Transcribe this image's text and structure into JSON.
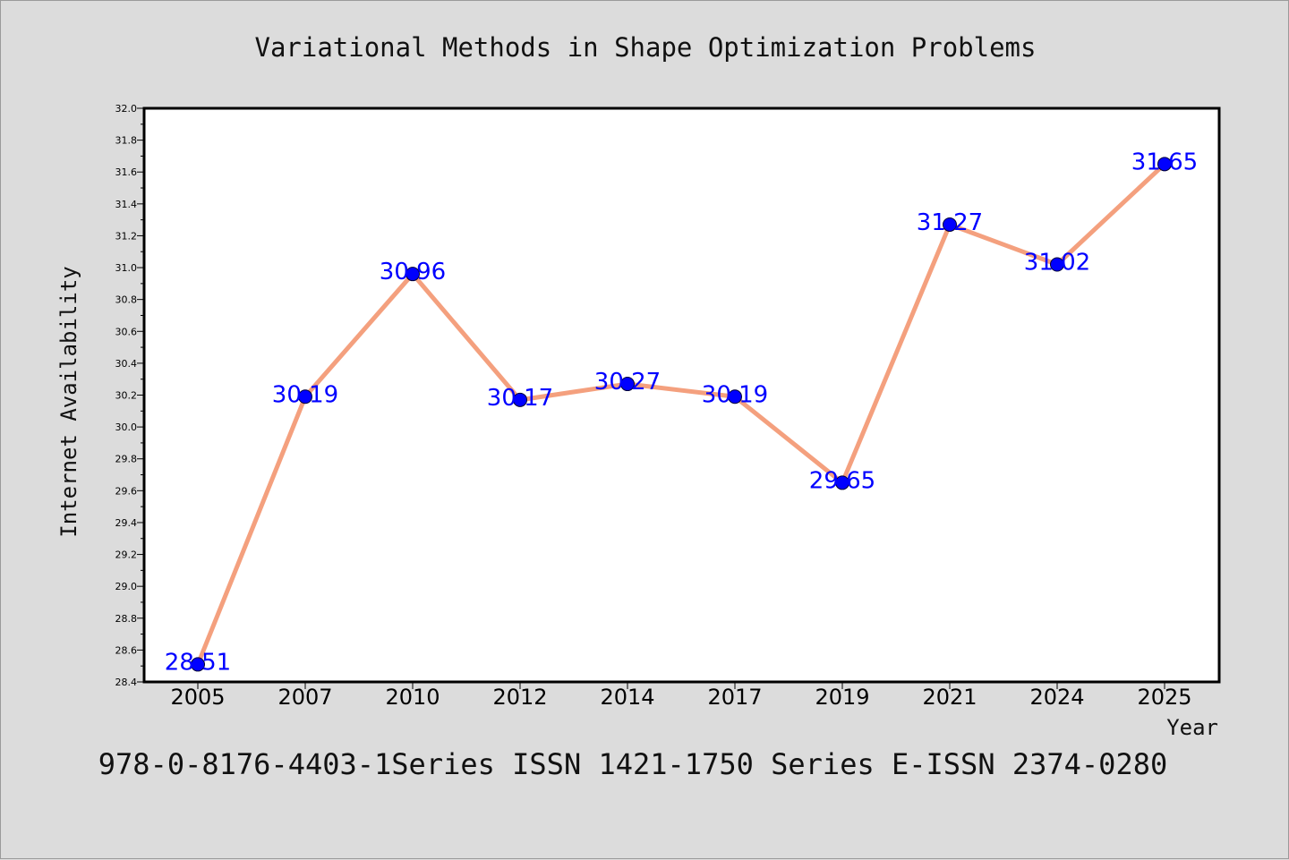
{
  "chart_data": {
    "type": "line",
    "title": "Variational Methods in Shape Optimization Problems",
    "xlabel": "Year",
    "ylabel": "Internet Availability",
    "categories": [
      "2005",
      "2007",
      "2010",
      "2012",
      "2014",
      "2017",
      "2019",
      "2021",
      "2024",
      "2025"
    ],
    "values": [
      28.51,
      30.19,
      30.96,
      30.17,
      30.27,
      30.19,
      29.65,
      31.27,
      31.02,
      31.65
    ],
    "data_labels": [
      "28.51",
      "30.19",
      "30.96",
      "30.17",
      "30.27",
      "30.19",
      "29.65",
      "31.27",
      "31.02",
      "31.65"
    ],
    "ylim": [
      28.4,
      32.0
    ],
    "yticks": [
      "28.4",
      "28.6",
      "28.8",
      "29.0",
      "29.2",
      "29.4",
      "29.6",
      "29.8",
      "30.0",
      "30.2",
      "30.4",
      "30.6",
      "30.8",
      "31.0",
      "31.2",
      "31.4",
      "31.6",
      "31.8",
      "32.0"
    ],
    "grid": false,
    "line_color": "#f4a07e",
    "marker_color": "#0000ff",
    "label_color": "#0000ff",
    "background": "#dcdcdc",
    "plot_background": "#ffffff"
  },
  "footer": "978-0-8176-4403-1Series ISSN 1421-1750 Series E-ISSN 2374-0280"
}
